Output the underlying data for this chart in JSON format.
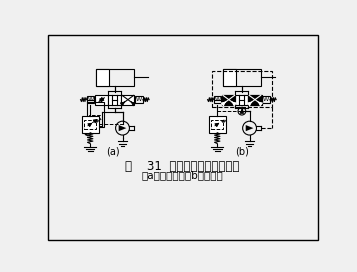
{
  "title_line1": "图    31  三位四通换向卸荷回路",
  "title_line2": "（a）改进前；（b）改进后",
  "label_a": "(a)",
  "label_b": "(b)",
  "bg_color": "#f0f0f0",
  "lw": 0.8
}
